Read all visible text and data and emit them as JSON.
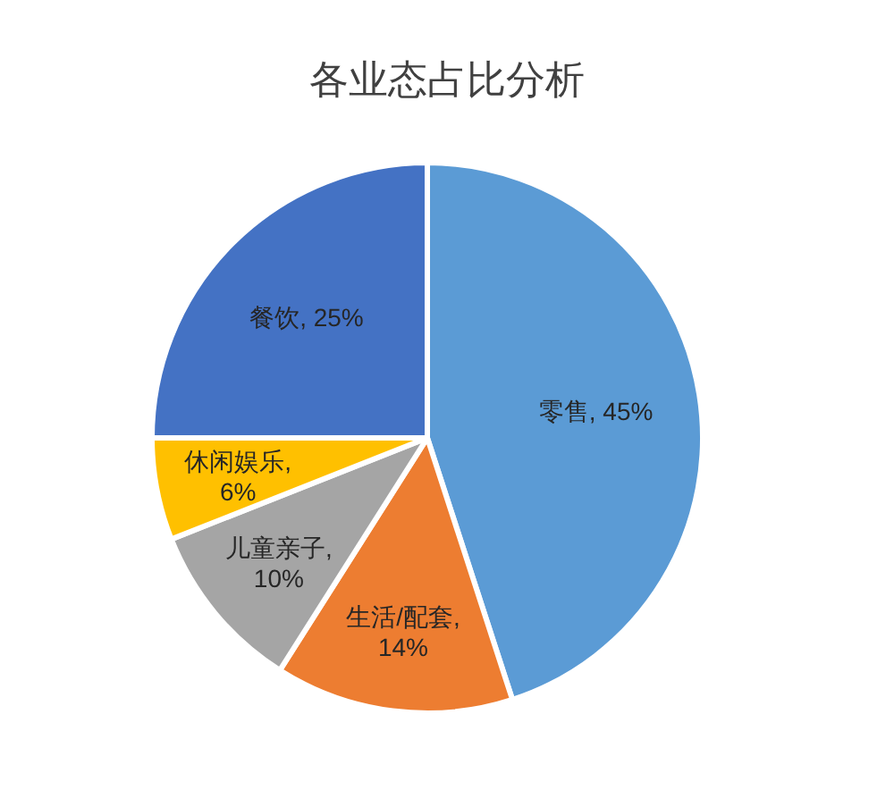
{
  "chart_data": {
    "type": "pie",
    "title": "各业态占比分析",
    "categories": [
      "零售",
      "生活/配套",
      "儿童亲子",
      "休闲娱乐",
      "餐饮"
    ],
    "values": [
      45,
      14,
      10,
      6,
      25
    ],
    "value_labels": [
      ", 45%",
      ", 14%",
      ", 10%",
      ", 6%",
      ", 25%"
    ],
    "colors": [
      "#5b9bd5",
      "#ed7d31",
      "#a5a5a5",
      "#ffc000",
      "#4472c4"
    ]
  }
}
